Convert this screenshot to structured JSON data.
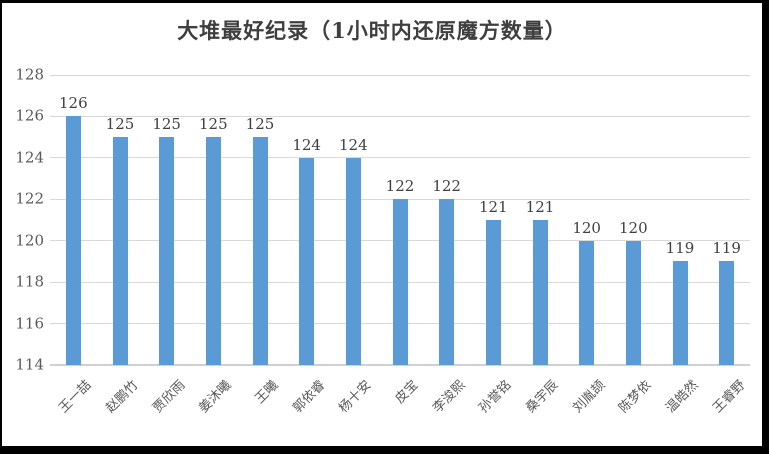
{
  "chart_data": {
    "type": "bar",
    "title": "大堆最好纪录（1小时内还原魔方数量）",
    "categories": [
      "王一喆",
      "赵鹏竹",
      "贾欣雨",
      "姜沐曦",
      "王曦",
      "郭依睿",
      "杨十安",
      "皮宝",
      "李浚熙",
      "孙誉铭",
      "桑宇辰",
      "刘胤颉",
      "陈梦依",
      "温皓然",
      "王睿野"
    ],
    "values": [
      126,
      125,
      125,
      125,
      125,
      124,
      124,
      122,
      122,
      121,
      121,
      120,
      120,
      119,
      119
    ],
    "xlabel": "",
    "ylabel": "",
    "ylim": [
      114,
      128
    ],
    "yticks": [
      114,
      116,
      118,
      120,
      122,
      124,
      126,
      128
    ],
    "grid": true,
    "legend_position": "none",
    "data_labels": true,
    "x_label_rotation_deg": 45,
    "colors": {
      "bar": "#5b9bd5",
      "gridline": "#d9d9d9",
      "title_text": "#3f3f3f",
      "axis_text": "#595959",
      "data_label_text": "#404040",
      "frame_border": "#000000",
      "background": "#ffffff"
    }
  }
}
